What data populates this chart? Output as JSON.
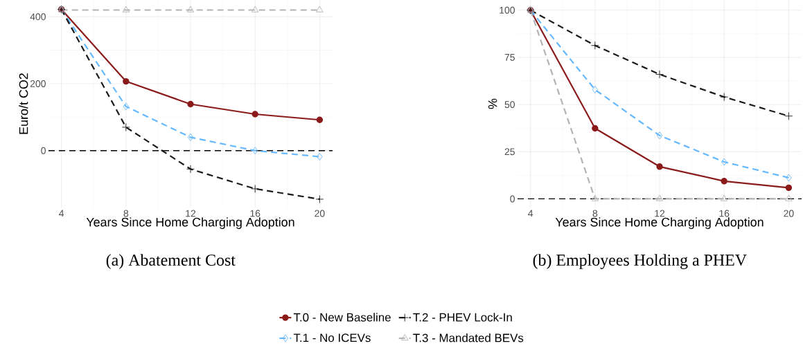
{
  "chart_data": [
    {
      "type": "line",
      "title": "(a) Abatement Cost",
      "xlabel": "Years Since Home Charging Adoption",
      "ylabel": "Euro/t CO2",
      "x": [
        4,
        8,
        12,
        16,
        20
      ],
      "xlim": [
        3.2,
        20.8
      ],
      "ylim": [
        -170,
        450
      ],
      "xticks": [
        4,
        8,
        12,
        16,
        20
      ],
      "yticks": [
        0,
        200,
        400
      ],
      "grid": true,
      "legend": "bottom",
      "ref_lines": [
        {
          "axis": "y",
          "value": 0,
          "color": "#000000",
          "line_style": "dashed"
        }
      ],
      "series": [
        {
          "name": "T.0 - New Baseline",
          "color": "#8b1a1a",
          "marker": "circle",
          "line_style": "solid",
          "values": [
            422,
            207,
            139,
            109,
            92
          ]
        },
        {
          "name": "T.1 - No ICEVs",
          "color": "#63b8ff",
          "marker": "diamond",
          "line_style": "dashed",
          "values": [
            422,
            132,
            40,
            0,
            -18
          ]
        },
        {
          "name": "T.2 - PHEV Lock-In",
          "color": "#1a1a1a",
          "marker": "cross",
          "line_style": "dashed",
          "values": [
            422,
            70,
            -55,
            -114,
            -145
          ]
        },
        {
          "name": "T.3 - Mandated BEVs",
          "color": "#b3b3b3",
          "marker": "triangle",
          "line_style": "dashed",
          "values": [
            420,
            420,
            420,
            420,
            420
          ]
        }
      ]
    },
    {
      "type": "line",
      "title": "(b) Employees Holding a PHEV",
      "xlabel": "Years Since Home Charging Adoption",
      "ylabel": "%",
      "x": [
        4,
        8,
        12,
        16,
        20
      ],
      "xlim": [
        3.2,
        20.8
      ],
      "ylim": [
        -4.6,
        105.4
      ],
      "xticks": [
        4,
        8,
        12,
        16,
        20
      ],
      "yticks": [
        0,
        25,
        50,
        75,
        100
      ],
      "grid": true,
      "ref_lines": [
        {
          "axis": "y",
          "value": 0,
          "color": "#000000",
          "line_style": "dashed"
        }
      ],
      "series": [
        {
          "color": "#8b1a1a",
          "marker": "circle",
          "line_style": "solid",
          "values": [
            100,
            37.4,
            17.1,
            9.4,
            5.9
          ]
        },
        {
          "color": "#63b8ff",
          "marker": "diamond",
          "line_style": "dashed",
          "values": [
            100,
            57.9,
            33.6,
            19.6,
            11.2
          ]
        },
        {
          "color": "#1a1a1a",
          "marker": "cross",
          "line_style": "dashed",
          "values": [
            100,
            81.3,
            66,
            54,
            43.9
          ]
        },
        {
          "color": "#b3b3b3",
          "marker": "triangle",
          "line_style": "dashed",
          "values": [
            100,
            0,
            0,
            0,
            0
          ]
        }
      ]
    }
  ]
}
